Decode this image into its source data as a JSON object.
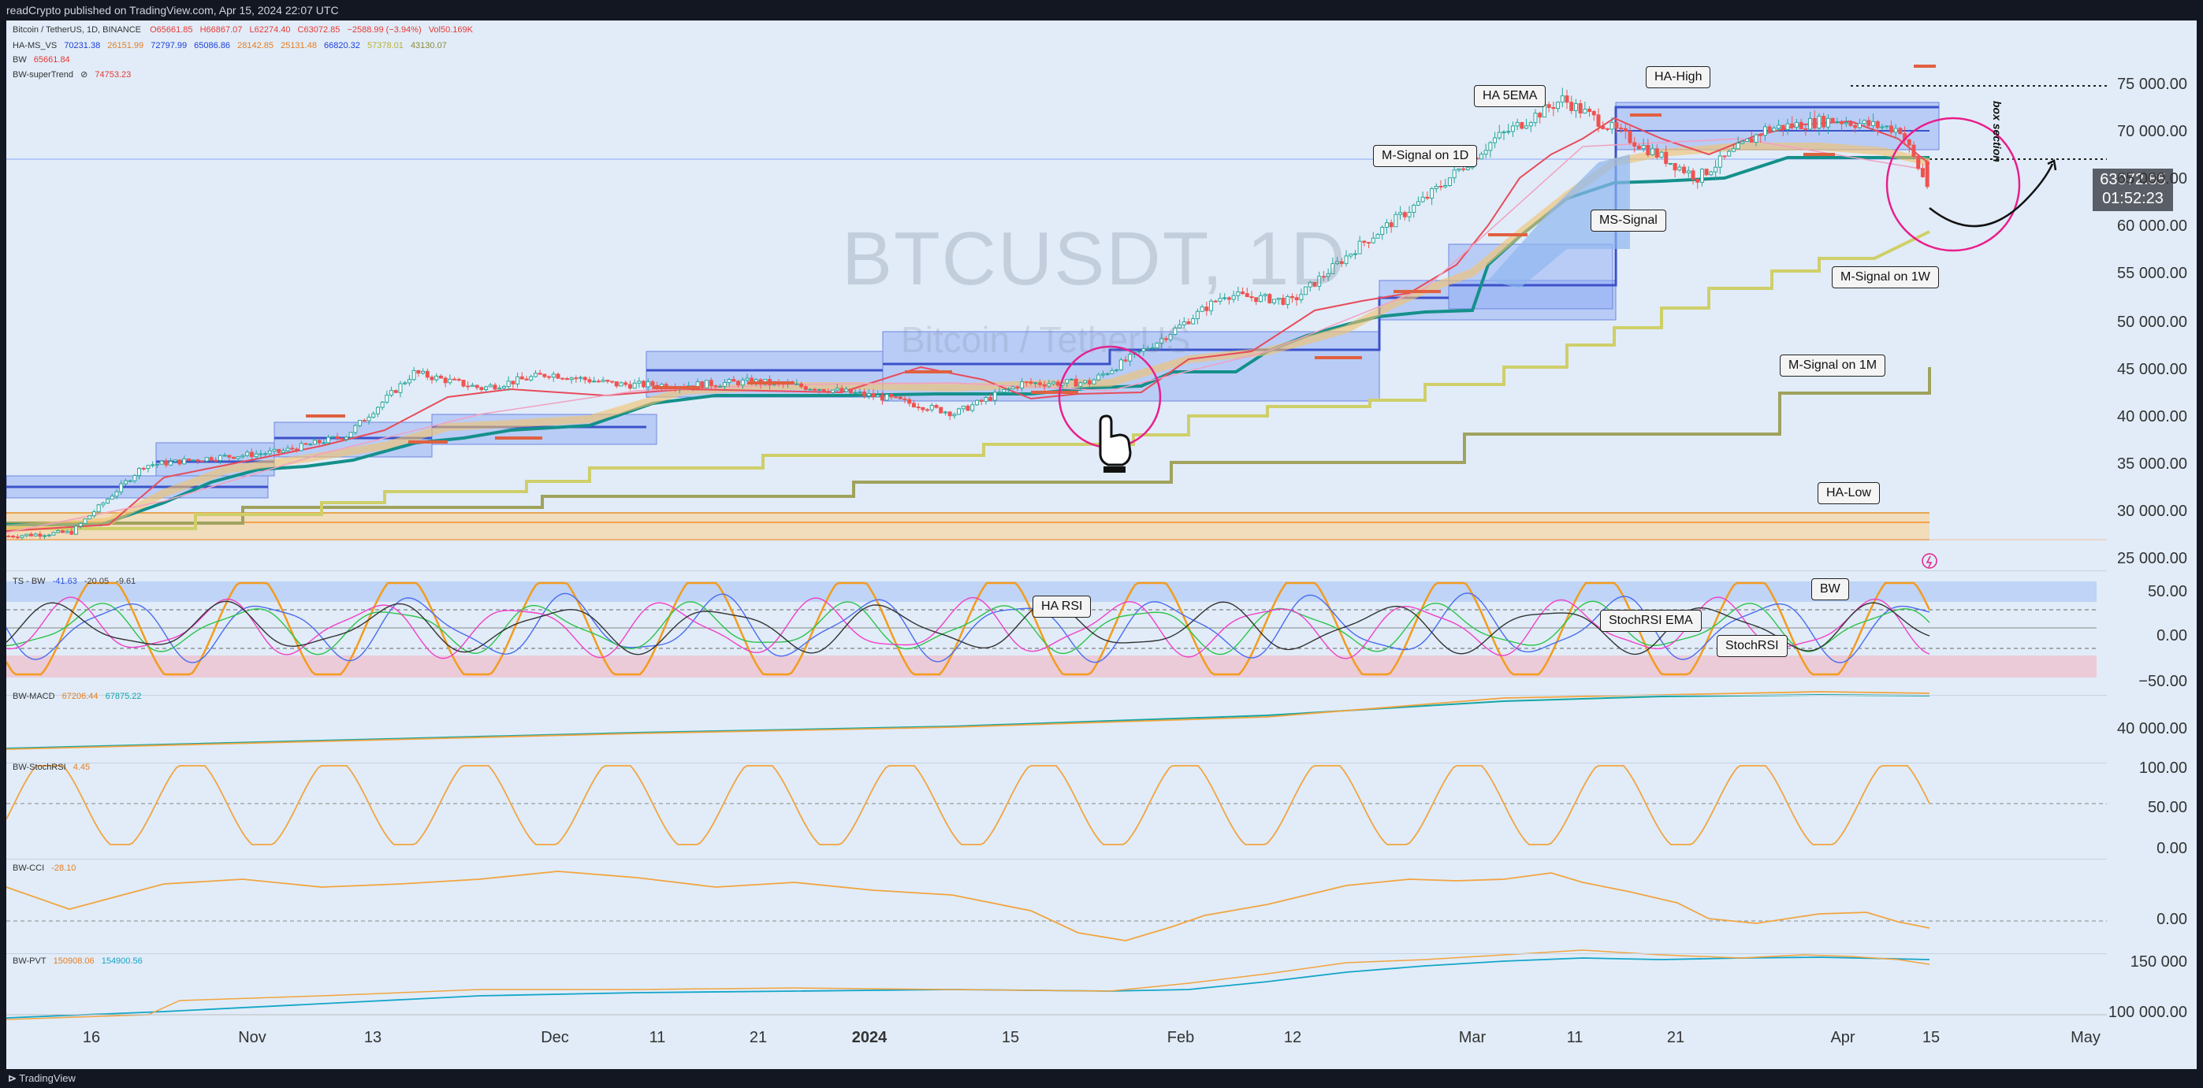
{
  "header": {
    "published": "readCrypto published on TradingView.com, Apr 15, 2024 22:07 UTC"
  },
  "footer": {
    "brand": "TradingView"
  },
  "legend_main": {
    "symbol": "Bitcoin / TetherUS, 1D, BINANCE",
    "o": "O65661.85",
    "h": "H66867.07",
    "l": "L62274.40",
    "c": "C63072.85",
    "chg": "−2588.99 (−3.94%)",
    "vol": "Vol50.169K"
  },
  "legend_hams": {
    "label": "HA-MS_VS",
    "v1": "70231.38",
    "v2": "26151.99",
    "v3": "72797.99",
    "v4": "65086.86",
    "v5": "28142.85",
    "v6": "25131.48",
    "v7": "66820.32",
    "v8": "57378.01",
    "v9": "43130.07"
  },
  "legend_bw": {
    "label": "BW",
    "v": "65661.84"
  },
  "legend_st": {
    "label": "BW-superTrend",
    "icon": "eye-icon",
    "v": "74753.23"
  },
  "legend_ts": {
    "label": "TS - BW",
    "v1": "-41.63",
    "v2": "-20.05",
    "v3": "-9.61"
  },
  "legend_macd": {
    "label": "BW-MACD",
    "v1": "67206.44",
    "v2": "67875.22"
  },
  "legend_stoch": {
    "label": "BW-StochRSI",
    "v1": "4.45"
  },
  "legend_cci": {
    "label": "BW-CCI",
    "v1": "-28.10"
  },
  "legend_pvt": {
    "label": "BW-PVT",
    "v1": "150908.06",
    "v2": "154900.56"
  },
  "watermark": {
    "symbol": "BTCUSDT, 1D",
    "name": "Bitcoin / TetherUS"
  },
  "price": {
    "last": "63072.85",
    "countdown": "01:52:23"
  },
  "y_axis_main": [
    "75 000.00",
    "70 000.00",
    "65 000.00",
    "60 000.00",
    "55 000.00",
    "50 000.00",
    "45 000.00",
    "40 000.00",
    "35 000.00",
    "30 000.00",
    "25 000.00"
  ],
  "y_axis_ts": [
    "50.00",
    "0.00",
    "−50.00"
  ],
  "y_axis_macd": [
    "40 000.00"
  ],
  "y_axis_stoch": [
    "100.00",
    "50.00",
    "0.00"
  ],
  "y_axis_cci": [
    "0.00"
  ],
  "y_axis_pvt": [
    "150 000",
    "100 000.00"
  ],
  "x_axis": [
    "16",
    "Nov",
    "13",
    "Dec",
    "11",
    "21",
    "2024",
    "15",
    "Feb",
    "12",
    "Mar",
    "11",
    "21",
    "Apr",
    "15",
    "May"
  ],
  "callouts": {
    "ha_5ema": "HA 5EMA",
    "ha_high": "HA-High",
    "m_signal_1d": "M-Signal on 1D",
    "ms_signal": "MS-Signal",
    "m_signal_1w": "M-Signal on 1W",
    "m_signal_1m": "M-Signal on 1M",
    "ha_low": "HA-Low",
    "ha_rsi": "HA RSI",
    "bw": "BW",
    "stochrsi_ema": "StochRSI EMA",
    "stochrsi": "StochRSI"
  },
  "box_section": "box section",
  "colors": {
    "bg": "#e1ecf8",
    "up": "#26a69a",
    "down": "#ef5350",
    "orange": "#f7a233",
    "magenta": "#e91e8c",
    "teal": "#17a589",
    "olive": "#b9bf6a"
  },
  "chart_data": {
    "type": "candlestick",
    "ohlc_last": {
      "open": 65661.85,
      "high": 66867.07,
      "low": 62274.4,
      "close": 63072.85
    },
    "ylim": [
      24000,
      77000
    ],
    "trend_close": [
      [
        0,
        26900
      ],
      [
        14,
        27300
      ],
      [
        30,
        34200
      ],
      [
        45,
        35000
      ],
      [
        60,
        35600
      ],
      [
        75,
        37300
      ],
      [
        90,
        43800
      ],
      [
        105,
        42200
      ],
      [
        120,
        43700
      ],
      [
        135,
        42600
      ],
      [
        150,
        42500
      ],
      [
        165,
        42900
      ],
      [
        180,
        42200
      ],
      [
        195,
        41200
      ],
      [
        210,
        39600
      ],
      [
        225,
        42700
      ],
      [
        240,
        42800
      ],
      [
        255,
        47000
      ],
      [
        270,
        51900
      ],
      [
        285,
        51200
      ],
      [
        300,
        57000
      ],
      [
        315,
        62000
      ],
      [
        330,
        68000
      ],
      [
        345,
        72100
      ],
      [
        360,
        68000
      ],
      [
        375,
        64000
      ],
      [
        390,
        69000
      ],
      [
        405,
        70000
      ],
      [
        420,
        69000
      ],
      [
        426,
        63072
      ]
    ]
  }
}
